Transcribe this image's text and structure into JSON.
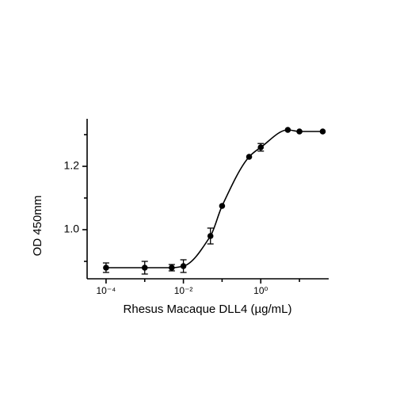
{
  "chart_data": {
    "type": "scatter",
    "x_label": "Rhesus Macaque DLL4 (µg/mL)",
    "y_label": "OD 450mm",
    "log_x": true,
    "color": "#000000",
    "x": [
      0.0001,
      0.001,
      0.005,
      0.01,
      0.05,
      0.1,
      0.5,
      1,
      5,
      10,
      40
    ],
    "values": [
      0.88,
      0.88,
      0.88,
      0.885,
      0.98,
      1.075,
      1.23,
      1.26,
      1.315,
      1.31,
      1.31
    ],
    "errors": [
      0.015,
      0.02,
      0.01,
      0.02,
      0.025,
      null,
      null,
      0.012,
      null,
      null,
      null
    ],
    "xlim": [
      3.24e-05,
      57
    ],
    "ylim": [
      0.845,
      1.35
    ],
    "xticks": [
      {
        "value": 0.0001,
        "label": "10⁻⁴"
      },
      {
        "value": 0.01,
        "label": "10⁻²"
      },
      {
        "value": 1,
        "label": "10⁰"
      }
    ],
    "xminorticks": [
      0.001,
      0.1,
      10
    ],
    "yticks": [
      {
        "value": 1,
        "label": "1.0"
      },
      1.2
    ],
    "yminorticks": [
      0.9,
      1.1,
      1.3
    ]
  }
}
